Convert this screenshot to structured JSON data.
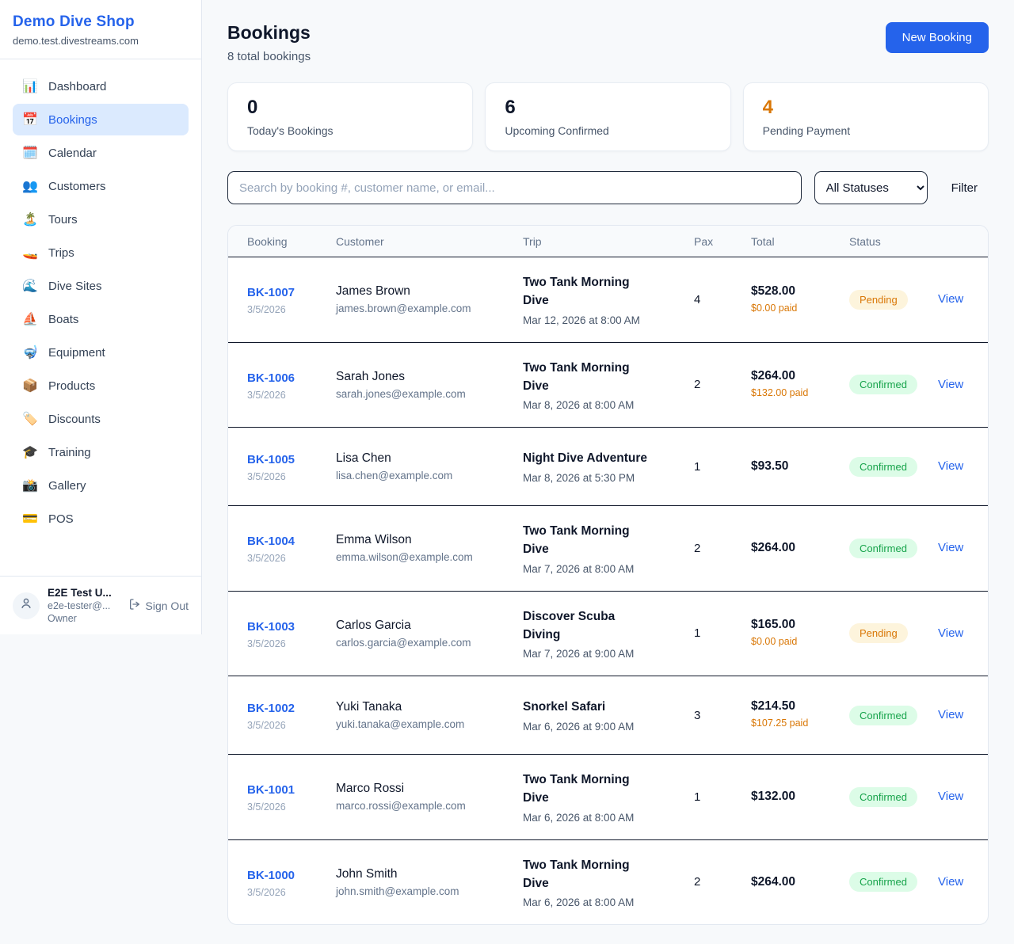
{
  "sidebar": {
    "brand": {
      "name": "Demo Dive Shop",
      "domain": "demo.test.divestreams.com"
    },
    "nav": [
      {
        "icon": "📊",
        "icon_name": "dashboard-chart-icon",
        "label": "Dashboard",
        "active": false
      },
      {
        "icon": "📅",
        "icon_name": "bookings-calendar-icon",
        "label": "Bookings",
        "active": true
      },
      {
        "icon": "🗓️",
        "icon_name": "calendar-icon",
        "label": "Calendar",
        "active": false
      },
      {
        "icon": "👥",
        "icon_name": "customers-icon",
        "label": "Customers",
        "active": false
      },
      {
        "icon": "🏝️",
        "icon_name": "island-icon",
        "label": "Tours",
        "active": false
      },
      {
        "icon": "🚤",
        "icon_name": "speedboat-icon",
        "label": "Trips",
        "active": false
      },
      {
        "icon": "🌊",
        "icon_name": "wave-icon",
        "label": "Dive Sites",
        "active": false
      },
      {
        "icon": "⛵",
        "icon_name": "sailboat-icon",
        "label": "Boats",
        "active": false
      },
      {
        "icon": "🤿",
        "icon_name": "diving-mask-icon",
        "label": "Equipment",
        "active": false
      },
      {
        "icon": "📦",
        "icon_name": "package-icon",
        "label": "Products",
        "active": false
      },
      {
        "icon": "🏷️",
        "icon_name": "tag-icon",
        "label": "Discounts",
        "active": false
      },
      {
        "icon": "🎓",
        "icon_name": "graduation-cap-icon",
        "label": "Training",
        "active": false
      },
      {
        "icon": "📸",
        "icon_name": "camera-icon",
        "label": "Gallery",
        "active": false
      },
      {
        "icon": "💳",
        "icon_name": "credit-card-icon",
        "label": "POS",
        "active": false
      }
    ],
    "user": {
      "name": "E2E Test U...",
      "email": "e2e-tester@...",
      "role": "Owner",
      "sign_out_label": "Sign Out"
    }
  },
  "header": {
    "title": "Bookings",
    "subtitle": "8 total bookings",
    "new_booking_label": "New Booking"
  },
  "stats": [
    {
      "value": "0",
      "label": "Today's Bookings",
      "color": "#0f172a"
    },
    {
      "value": "6",
      "label": "Upcoming Confirmed",
      "color": "#0f172a"
    },
    {
      "value": "4",
      "label": "Pending Payment",
      "color": "#d97706"
    }
  ],
  "filters": {
    "search_placeholder": "Search by booking #, customer name, or email...",
    "status_selected": "All Statuses",
    "filter_label": "Filter"
  },
  "table": {
    "columns": [
      "Booking",
      "Customer",
      "Trip",
      "Pax",
      "Total",
      "Status"
    ],
    "view_label": "View",
    "rows": [
      {
        "id": "BK-1007",
        "date": "3/5/2026",
        "customer": "James Brown",
        "email": "james.brown@example.com",
        "trip": "Two Tank Morning Dive",
        "datetime": "Mar 12, 2026 at 8:00 AM",
        "pax": "4",
        "total": "$528.00",
        "paid": "$0.00 paid",
        "status": "Pending"
      },
      {
        "id": "BK-1006",
        "date": "3/5/2026",
        "customer": "Sarah Jones",
        "email": "sarah.jones@example.com",
        "trip": "Two Tank Morning Dive",
        "datetime": "Mar 8, 2026 at 8:00 AM",
        "pax": "2",
        "total": "$264.00",
        "paid": "$132.00 paid",
        "status": "Confirmed"
      },
      {
        "id": "BK-1005",
        "date": "3/5/2026",
        "customer": "Lisa Chen",
        "email": "lisa.chen@example.com",
        "trip": "Night Dive Adventure",
        "datetime": "Mar 8, 2026 at 5:30 PM",
        "pax": "1",
        "total": "$93.50",
        "paid": "",
        "status": "Confirmed"
      },
      {
        "id": "BK-1004",
        "date": "3/5/2026",
        "customer": "Emma Wilson",
        "email": "emma.wilson@example.com",
        "trip": "Two Tank Morning Dive",
        "datetime": "Mar 7, 2026 at 8:00 AM",
        "pax": "2",
        "total": "$264.00",
        "paid": "",
        "status": "Confirmed"
      },
      {
        "id": "BK-1003",
        "date": "3/5/2026",
        "customer": "Carlos Garcia",
        "email": "carlos.garcia@example.com",
        "trip": "Discover Scuba Diving",
        "datetime": "Mar 7, 2026 at 9:00 AM",
        "pax": "1",
        "total": "$165.00",
        "paid": "$0.00 paid",
        "status": "Pending"
      },
      {
        "id": "BK-1002",
        "date": "3/5/2026",
        "customer": "Yuki Tanaka",
        "email": "yuki.tanaka@example.com",
        "trip": "Snorkel Safari",
        "datetime": "Mar 6, 2026 at 9:00 AM",
        "pax": "3",
        "total": "$214.50",
        "paid": "$107.25 paid",
        "status": "Confirmed"
      },
      {
        "id": "BK-1001",
        "date": "3/5/2026",
        "customer": "Marco Rossi",
        "email": "marco.rossi@example.com",
        "trip": "Two Tank Morning Dive",
        "datetime": "Mar 6, 2026 at 8:00 AM",
        "pax": "1",
        "total": "$132.00",
        "paid": "",
        "status": "Confirmed"
      },
      {
        "id": "BK-1000",
        "date": "3/5/2026",
        "customer": "John Smith",
        "email": "john.smith@example.com",
        "trip": "Two Tank Morning Dive",
        "datetime": "Mar 6, 2026 at 8:00 AM",
        "pax": "2",
        "total": "$264.00",
        "paid": "",
        "status": "Confirmed"
      }
    ]
  },
  "colors": {
    "accent_blue": "#2563eb",
    "active_nav_bg": "#dbeafe",
    "pending_badge_bg": "#fdf4dc",
    "pending_badge_text": "#d97706",
    "confirmed_badge_bg": "#dcfce7",
    "confirmed_badge_text": "#16a34a",
    "paid_amount_text": "#d97706",
    "page_bg": "#f7f9fb"
  }
}
